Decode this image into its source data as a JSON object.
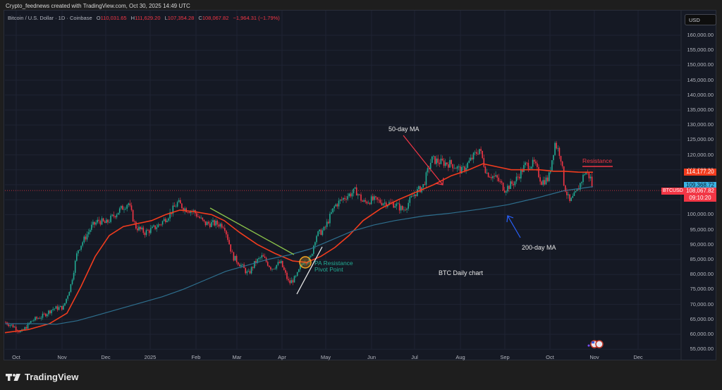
{
  "caption": "Crypto_feednews created with TradingView.com, Oct 30, 2025 14:49 UTC",
  "legend": {
    "symbol": "Bitcoin / U.S. Dollar · 1D · Coinbase",
    "o_label": "O",
    "o": "110,031.65",
    "h_label": "H",
    "h": "111,629.20",
    "l_label": "L",
    "l": "107,354.28",
    "c_label": "C",
    "c": "108,067.82",
    "change": "−1,964.31 (−1.79%)"
  },
  "currency_button": "USD",
  "price_tags": {
    "ma50": "114,177.20",
    "ma200": "109,368.72",
    "last": "108,067.82",
    "countdown": "09:10:20",
    "symbol": "BTCUSD"
  },
  "annotations": {
    "ma50": "50-day MA",
    "ma200": "200-day MA",
    "title": "BTC Daily chart",
    "pa_line1": "PA Resistance",
    "pa_line2": "Pivot Point",
    "resistance": "Resistance"
  },
  "branding": "TradingView",
  "colors": {
    "up": "#22ab94",
    "down": "#f23645",
    "ma50": "#f23c1e",
    "ma200": "#2e6f8e",
    "trendline": "#8bc34a",
    "pivot_circle": "#f5a623",
    "arrow_ma200": "#2962ff",
    "background": "#151924"
  },
  "chart_data": {
    "type": "line",
    "title": "BTC Daily chart",
    "subtitle": "Bitcoin / U.S. Dollar · 1D · Coinbase",
    "xlabel": "",
    "ylabel": "USD",
    "ylim": [
      55000,
      160000
    ],
    "grid": true,
    "y_ticks": [
      "160,000.00",
      "155,000.00",
      "150,000.00",
      "145,000.00",
      "140,000.00",
      "135,000.00",
      "130,000.00",
      "125,000.00",
      "120,000.00",
      "115,000.00",
      "110,000.00",
      "105,000.00",
      "100,000.00",
      "95,000.00",
      "90,000.00",
      "85,000.00",
      "80,000.00",
      "75,000.00",
      "70,000.00",
      "65,000.00",
      "60,000.00",
      "55,000.00"
    ],
    "x_ticks": [
      "Oct",
      "Nov",
      "Dec",
      "2025",
      "Feb",
      "Mar",
      "Apr",
      "May",
      "Jun",
      "Jul",
      "Aug",
      "Sep",
      "Oct",
      "Nov",
      "Dec"
    ],
    "x": [
      "2024-10",
      "2024-11",
      "2024-12",
      "2025-01",
      "2025-02",
      "2025-03",
      "2025-04",
      "2025-05",
      "2025-06",
      "2025-07",
      "2025-08",
      "2025-09",
      "2025-10",
      "2025-10-30"
    ],
    "series": [
      {
        "name": "BTCUSD close (approx)",
        "values": [
          62000,
          70000,
          96000,
          94000,
          101000,
          86000,
          83000,
          95000,
          105000,
          107000,
          118000,
          109000,
          114000,
          108068
        ]
      },
      {
        "name": "50-day MA",
        "values": [
          60000,
          63000,
          80000,
          97000,
          101000,
          94000,
          85000,
          86000,
          98000,
          105000,
          114000,
          112000,
          113000,
          114177
        ]
      },
      {
        "name": "200-day MA",
        "values": [
          63500,
          63500,
          68000,
          74000,
          80000,
          84000,
          86000,
          90000,
          95000,
          98000,
          100000,
          102000,
          106000,
          109369
        ]
      }
    ],
    "annotations": [
      "50-day MA",
      "200-day MA",
      "PA Resistance Pivot Point",
      "Resistance",
      "BTC Daily chart"
    ]
  }
}
